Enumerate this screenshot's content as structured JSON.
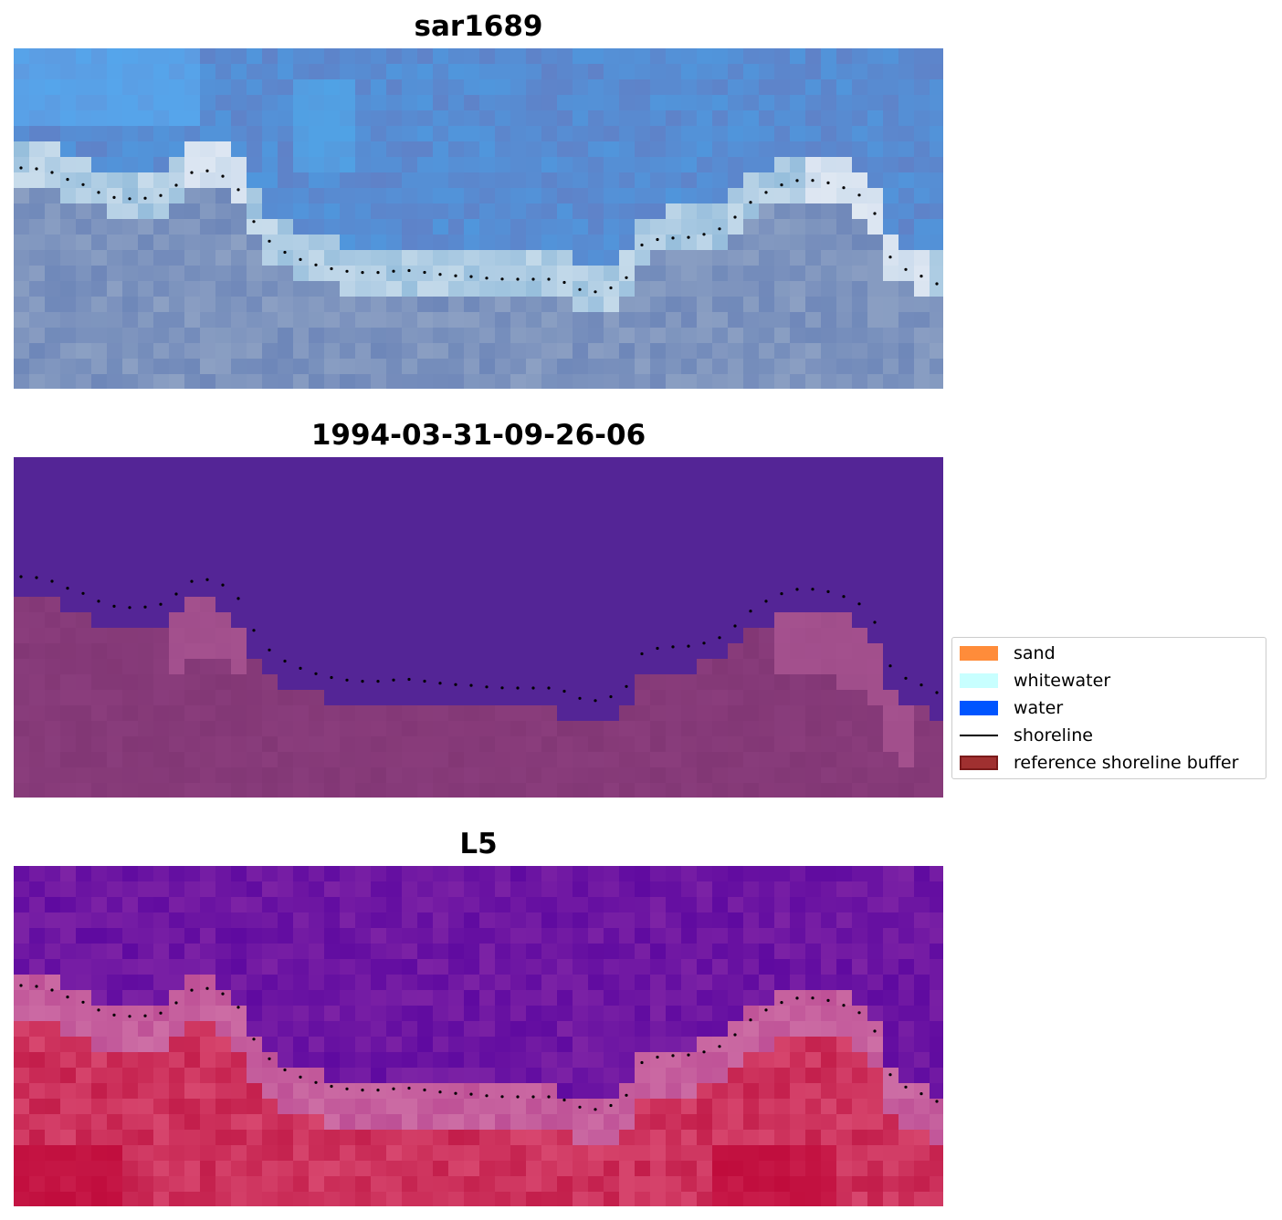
{
  "panels": [
    {
      "title": "sar1689",
      "kind": "rgb"
    },
    {
      "title": "1994-03-31-09-26-06",
      "kind": "classified"
    },
    {
      "title": "L5",
      "kind": "index"
    }
  ],
  "legend": {
    "items": [
      {
        "label": "sand",
        "color": "#ff8c3a",
        "type": "patch"
      },
      {
        "label": "whitewater",
        "color": "#c8ffff",
        "type": "patch"
      },
      {
        "label": "water",
        "color": "#0055ff",
        "type": "patch"
      },
      {
        "label": "shoreline",
        "color": "#000000",
        "type": "line"
      },
      {
        "label": "reference shoreline buffer",
        "color": "#a03030",
        "type": "patch",
        "edge": "#7a1a1a"
      }
    ]
  },
  "colors": {
    "classified_water": "#542596",
    "classified_buffer": "#823775",
    "rgb_sky": "#5b8fd0",
    "index_water": "#6a0ea0",
    "index_land": "#c8204a"
  }
}
